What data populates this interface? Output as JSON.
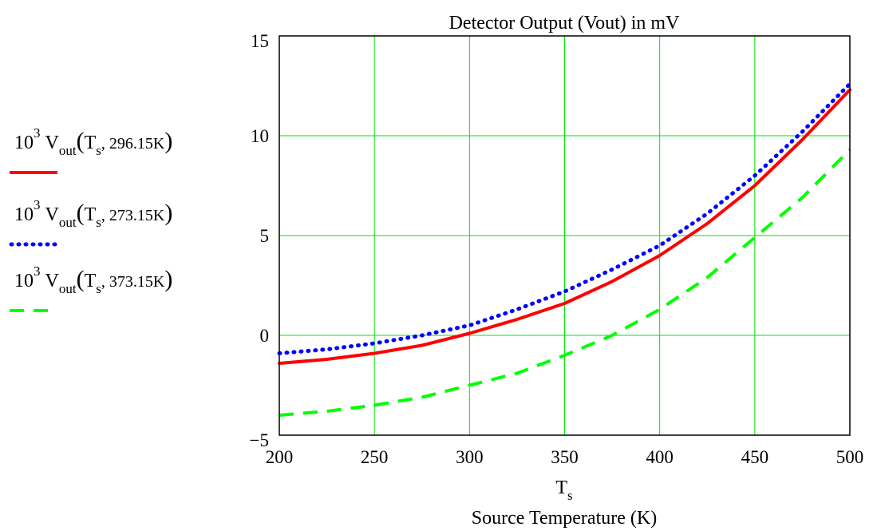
{
  "chart_data": {
    "type": "line",
    "title": "Detector Output (Vout) in mV",
    "xlabel": "T_s",
    "xlabel_symbol": "T",
    "xlabel_subscript": "s",
    "xlabel_sub": "Source Temperature (K)",
    "xlim": [
      200,
      500
    ],
    "ylim": [
      -5,
      15
    ],
    "x_ticks": [
      "200",
      "250",
      "300",
      "350",
      "400",
      "450",
      "500"
    ],
    "y_ticks": [
      "15",
      "10",
      "5",
      "0",
      "−5"
    ],
    "grid": true,
    "grid_color": "#00e600",
    "legend_position": "left",
    "x": [
      200,
      225,
      250,
      275,
      300,
      325,
      350,
      375,
      400,
      425,
      450,
      475,
      500
    ],
    "series": [
      {
        "name": "10^3 V_out(T_s, 296.15K)",
        "legend": {
          "base": "10",
          "exp": "3",
          "v": "V",
          "vsub": "out",
          "ts": "T",
          "tssub": "s",
          "param": ", 296.15K"
        },
        "color": "#ff0000",
        "style": "solid",
        "values": [
          -1.4,
          -1.2,
          -0.9,
          -0.5,
          0.1,
          0.8,
          1.6,
          2.7,
          4.0,
          5.6,
          7.5,
          9.8,
          12.3
        ]
      },
      {
        "name": "10^3 V_out(T_s, 273.15K)",
        "legend": {
          "base": "10",
          "exp": "3",
          "v": "V",
          "vsub": "out",
          "ts": "T",
          "tssub": "s",
          "param": ", 273.15K"
        },
        "color": "#0000ff",
        "style": "dotted",
        "values": [
          -0.9,
          -0.7,
          -0.4,
          0.0,
          0.5,
          1.3,
          2.2,
          3.3,
          4.5,
          6.1,
          8.0,
          10.2,
          12.6
        ]
      },
      {
        "name": "10^3 V_out(T_s, 373.15K)",
        "legend": {
          "base": "10",
          "exp": "3",
          "v": "V",
          "vsub": "out",
          "ts": "T",
          "tssub": "s",
          "param": ", 373.15K"
        },
        "color": "#00ff00",
        "style": "dashed",
        "values": [
          -4.0,
          -3.8,
          -3.5,
          -3.1,
          -2.5,
          -1.9,
          -1.0,
          0.0,
          1.3,
          2.9,
          4.9,
          6.9,
          9.3
        ]
      }
    ]
  }
}
